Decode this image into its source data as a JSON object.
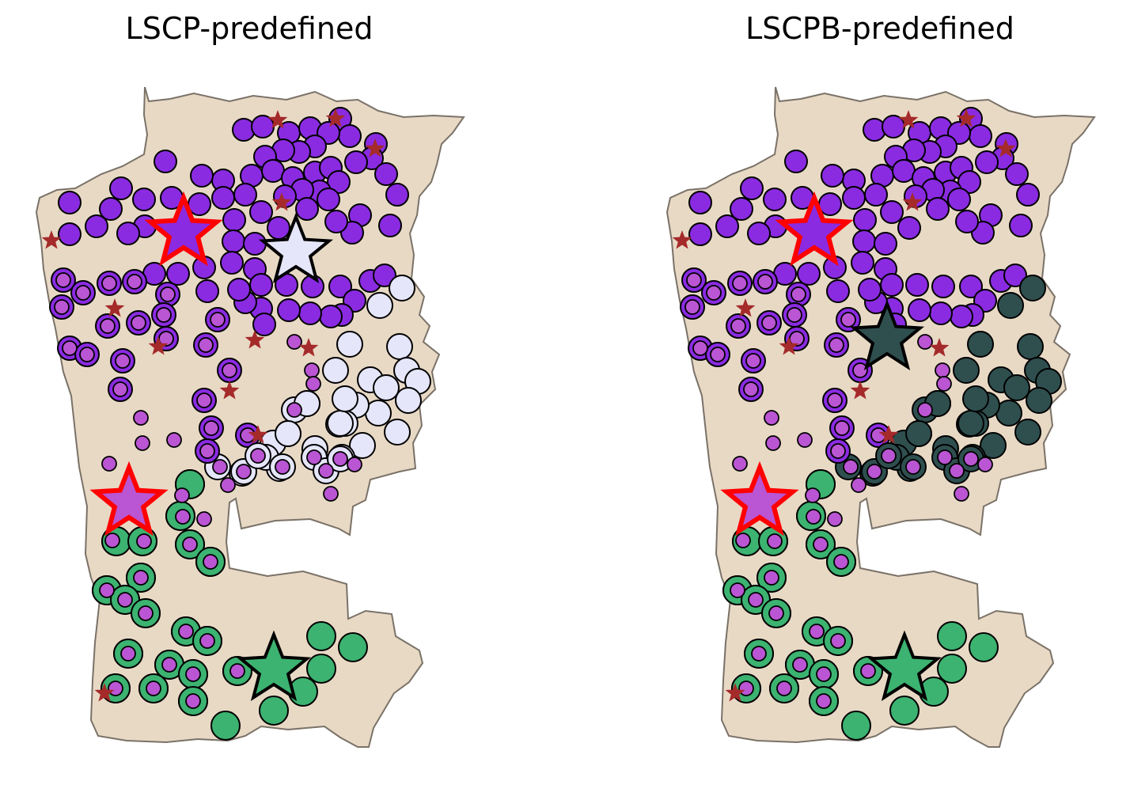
{
  "titles": {
    "left": "LSCP-predefined",
    "right": "LSCPB-predefined"
  },
  "colors": {
    "land_fill": "#e8d9c5",
    "land_edge": "#7a7268",
    "purple": "#8a2be2",
    "orchid": "#ba55d3",
    "lavender": "#e6e6fa",
    "green": "#3cb371",
    "darkslate": "#2f4f4f",
    "facility_candidate": "#a52a2a",
    "predefined_outline": "#ff0000",
    "selected_outline": "#000000"
  },
  "legend_note": "",
  "icons": {
    "facility": "star-icon",
    "demand": "circle-icon"
  }
}
